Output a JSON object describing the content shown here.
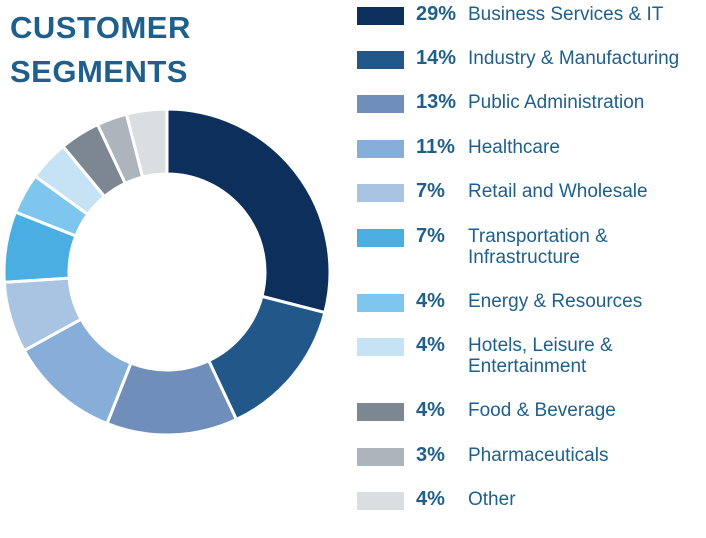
{
  "title": {
    "line1": "CUSTOMER",
    "line2": "SEGMENTS"
  },
  "chart_data": {
    "type": "pie",
    "donut": true,
    "segments": [
      {
        "percent_label": "29%",
        "label": [
          "Business Services & IT"
        ],
        "value": 29,
        "color": "#0d2f5c"
      },
      {
        "percent_label": "14%",
        "label": [
          "Industry & Manufacturing"
        ],
        "value": 14,
        "color": "#22578a"
      },
      {
        "percent_label": "13%",
        "label": [
          "Public Administration"
        ],
        "value": 13,
        "color": "#6f8fba"
      },
      {
        "percent_label": "11%",
        "label": [
          "Healthcare"
        ],
        "value": 11,
        "color": "#87aed8"
      },
      {
        "percent_label": "7%",
        "label": [
          "Retail and Wholesale"
        ],
        "value": 7,
        "color": "#a9c3e2"
      },
      {
        "percent_label": "7%",
        "label": [
          "Transportation &",
          "Infrastructure"
        ],
        "value": 7,
        "color": "#4aaee3"
      },
      {
        "percent_label": "4%",
        "label": [
          "Energy & Resources"
        ],
        "value": 4,
        "color": "#7fc6ee"
      },
      {
        "percent_label": "4%",
        "label": [
          "Hotels, Leisure &",
          "Entertainment"
        ],
        "value": 4,
        "color": "#c6e3f6"
      },
      {
        "percent_label": "4%",
        "label": [
          "Food & Beverage"
        ],
        "value": 4,
        "color": "#7d8791"
      },
      {
        "percent_label": "3%",
        "label": [
          "Pharmaceuticals"
        ],
        "value": 3,
        "color": "#adb4bb"
      },
      {
        "percent_label": "4%",
        "label": [
          "Other"
        ],
        "value": 4,
        "color": "#dadee1"
      }
    ]
  }
}
